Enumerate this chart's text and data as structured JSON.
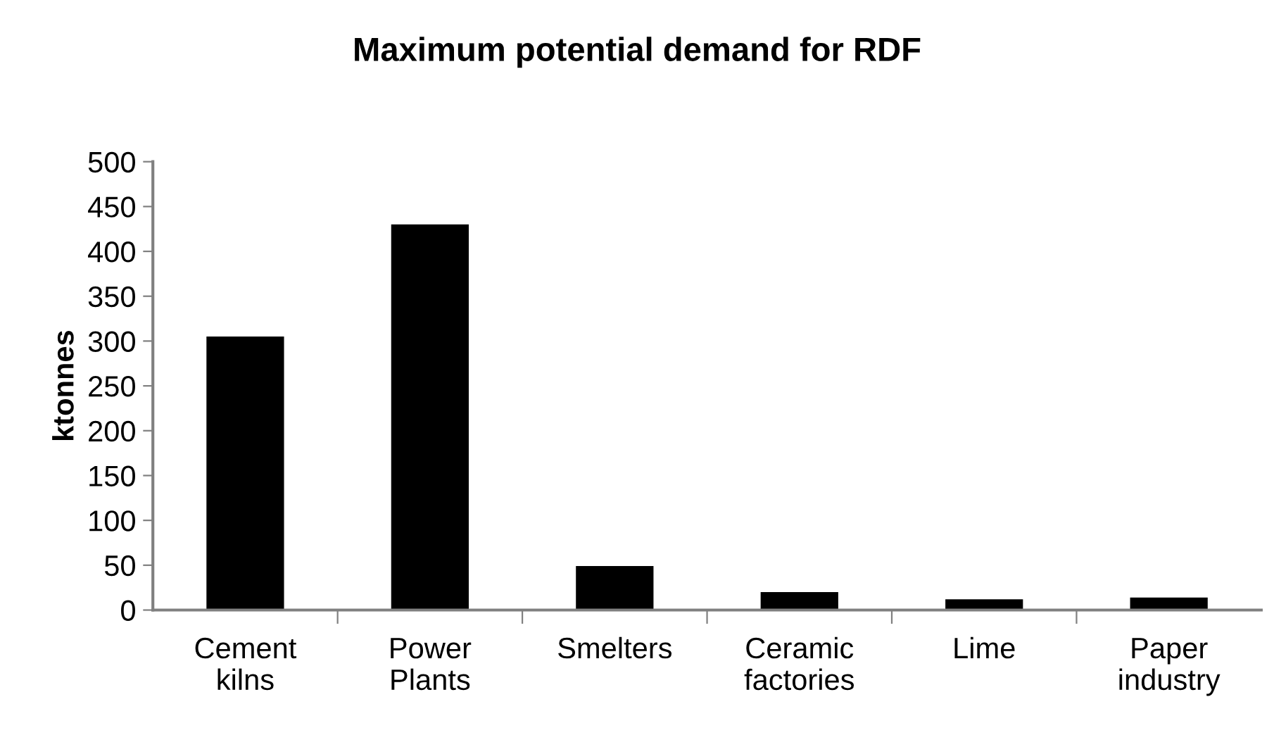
{
  "chart_data": {
    "type": "bar",
    "title": "Maximum potential demand for RDF",
    "ylabel": "ktonnes",
    "categories": [
      "Cement\nkilns",
      "Power\nPlants",
      "Smelters",
      "Ceramic\nfactories",
      "Lime",
      "Paper\nindustry"
    ],
    "values": [
      305,
      430,
      49,
      20,
      12,
      14
    ],
    "color": "#000000",
    "ylim": [
      0,
      500
    ],
    "yticks": [
      0,
      50,
      100,
      150,
      200,
      250,
      300,
      350,
      400,
      450,
      500
    ],
    "grid": false,
    "legend": false
  }
}
